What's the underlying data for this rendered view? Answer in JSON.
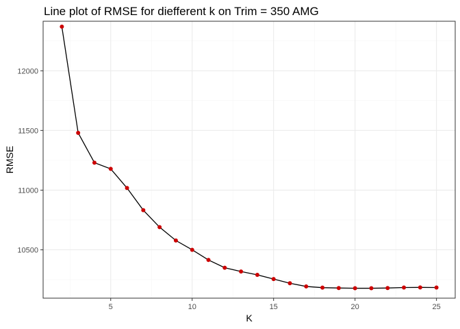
{
  "chart_data": {
    "type": "line",
    "title": "Line plot of RMSE for diefferent k on Trim = 350 AMG",
    "xlabel": "K",
    "ylabel": "RMSE",
    "x_ticks": [
      5,
      10,
      15,
      20,
      25
    ],
    "y_ticks": [
      10500,
      11000,
      11500,
      12000
    ],
    "xlim": [
      0.85,
      26.15
    ],
    "ylim": [
      10095,
      12415
    ],
    "grid": true,
    "legend": "none",
    "series": [
      {
        "x": [
          2,
          3,
          4,
          5,
          6,
          7,
          8,
          9,
          10,
          11,
          12,
          13,
          14,
          15,
          16,
          17,
          18,
          19,
          20,
          21,
          22,
          23,
          24,
          25
        ],
        "y": [
          12370,
          11480,
          11230,
          11178,
          11018,
          10832,
          10690,
          10578,
          10500,
          10415,
          10350,
          10318,
          10290,
          10255,
          10220,
          10193,
          10183,
          10180,
          10178,
          10178,
          10180,
          10184,
          10185,
          10184
        ]
      }
    ],
    "colors": {
      "line": "#000000",
      "point": "#cc0000",
      "grid_major": "#ebebeb",
      "grid_minor": "#f5f5f5",
      "border": "#333333"
    }
  }
}
